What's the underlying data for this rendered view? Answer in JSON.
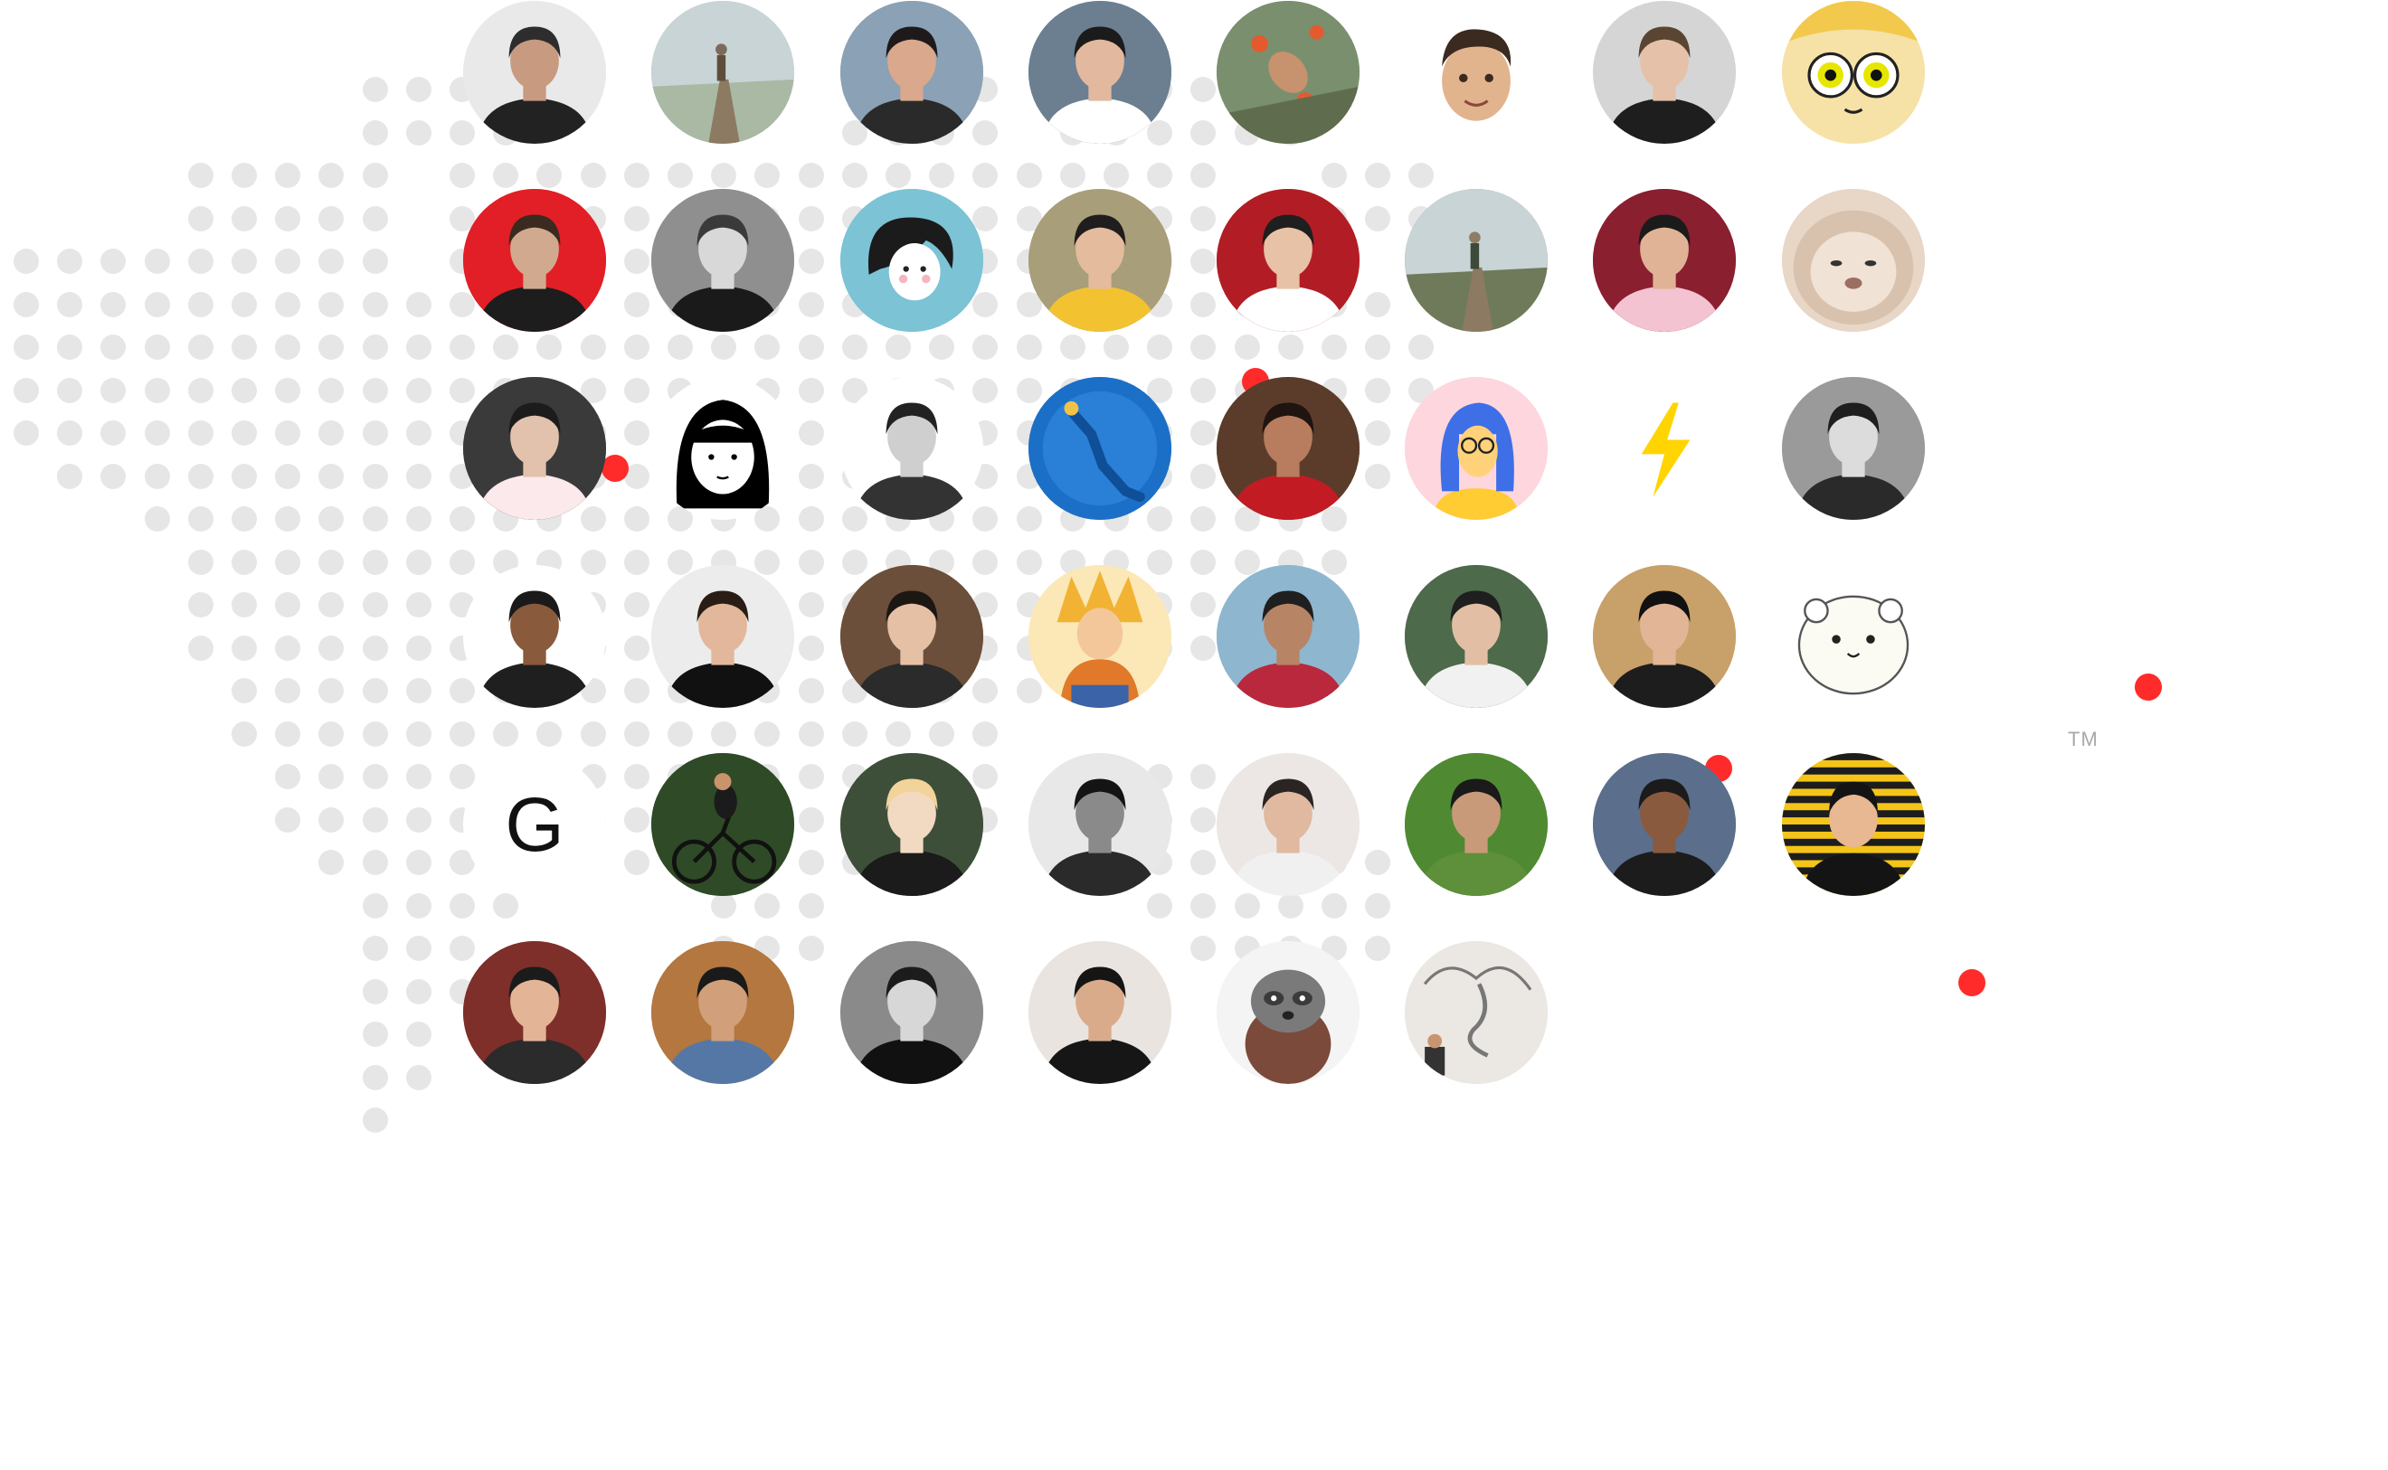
{
  "page": {
    "background": "#ffffff",
    "trademark": "TM"
  },
  "colors": {
    "dot": "#e6e6e6",
    "marker": "#ff2b2b"
  },
  "avatars": [
    {
      "kind": "person",
      "bg": "#e9e9e9",
      "skin": "#c89a80",
      "hair": "#2d2d2d",
      "shirt": "#222222",
      "icon": "avatar-photo-icon"
    },
    {
      "kind": "landscape",
      "bg": "#a9b9a4",
      "skin": "#7b6a5a",
      "hair": "#3c3329",
      "shirt": "#5f4d3c",
      "icon": "avatar-photo-icon"
    },
    {
      "kind": "person",
      "bg": "#8ba1b5",
      "skin": "#d9a88d",
      "hair": "#1f1a1a",
      "shirt": "#2a2a2a",
      "icon": "avatar-photo-icon"
    },
    {
      "kind": "person",
      "bg": "#6b7f91",
      "skin": "#e2b89f",
      "hair": "#1c1b1b",
      "shirt": "#ffffff",
      "icon": "avatar-photo-icon"
    },
    {
      "kind": "flower",
      "bg": "#7a8f6e",
      "skin": "#c7926e",
      "hair": "#2a2320",
      "shirt": "#d05a3a",
      "icon": "avatar-photo-icon"
    },
    {
      "kind": "memoji",
      "bg": "#ffffff",
      "skin": "#e2b48e",
      "hair": "#3a2a20",
      "shirt": "#ffffff",
      "icon": "memoji-icon"
    },
    {
      "kind": "person",
      "bg": "#d5d5d5",
      "skin": "#e5c1a9",
      "hair": "#5a4532",
      "shirt": "#1e1e1e",
      "icon": "avatar-photo-icon"
    },
    {
      "kind": "cartoon-eyes",
      "bg": "#f6e1a7",
      "skin": "#fff6dd",
      "hair": "#f2c94c",
      "shirt": "#ffffff",
      "icon": "cartoon-face-icon"
    },
    {
      "kind": "person",
      "bg": "#e21f26",
      "skin": "#d1a98f",
      "hair": "#3b2a1f",
      "shirt": "#1d1d1d",
      "icon": "avatar-photo-icon"
    },
    {
      "kind": "person",
      "bg": "#8f8f8f",
      "skin": "#d8d8d8",
      "hair": "#3a3a3a",
      "shirt": "#1a1a1a",
      "icon": "avatar-photo-icon"
    },
    {
      "kind": "illustration",
      "bg": "#7bc3d5",
      "skin": "#ffffff",
      "hair": "#1b1b1b",
      "shirt": "#7bc3d5",
      "icon": "illustrated-face-icon"
    },
    {
      "kind": "person",
      "bg": "#a99e7a",
      "skin": "#e4bb9d",
      "hair": "#1f1d1d",
      "shirt": "#f2c230",
      "icon": "avatar-photo-icon"
    },
    {
      "kind": "person",
      "bg": "#b21d25",
      "skin": "#e8c2a6",
      "hair": "#1f1f1f",
      "shirt": "#ffffff",
      "icon": "avatar-photo-icon"
    },
    {
      "kind": "landscape",
      "bg": "#6f7a5a",
      "skin": "#8e7d66",
      "hair": "#4a4a3a",
      "shirt": "#3c4a3a",
      "icon": "avatar-photo-icon"
    },
    {
      "kind": "person",
      "bg": "#8a1f30",
      "skin": "#e0b396",
      "hair": "#1b1b1b",
      "shirt": "#f4c3d1",
      "icon": "avatar-photo-icon"
    },
    {
      "kind": "dog",
      "bg": "#e8d6c6",
      "skin": "#f0e2d4",
      "hair": "#d9c2ad",
      "shirt": "#e8d6c6",
      "icon": "dog-icon"
    },
    {
      "kind": "person",
      "bg": "#3a3a3a",
      "skin": "#e2c1ad",
      "hair": "#1c1c1c",
      "shirt": "#fbe9ec",
      "icon": "avatar-photo-icon"
    },
    {
      "kind": "illustration-girl",
      "bg": "#ffffff",
      "skin": "#ffffff",
      "hair": "#000000",
      "shirt": "#ffffff",
      "icon": "illustrated-girl-icon"
    },
    {
      "kind": "person",
      "bg": "#ffffff",
      "skin": "#cfcfcf",
      "hair": "#222222",
      "shirt": "#333333",
      "icon": "avatar-photo-icon"
    },
    {
      "kind": "diver",
      "bg": "#1c6fc6",
      "skin": "#f0c24a",
      "hair": "#1c6fc6",
      "shirt": "#0f4f98",
      "icon": "diver-icon"
    },
    {
      "kind": "person",
      "bg": "#5b3c2b",
      "skin": "#b87d5e",
      "hair": "#1f1410",
      "shirt": "#c21b24",
      "icon": "avatar-photo-icon"
    },
    {
      "kind": "illustration-blue",
      "bg": "#fdd6de",
      "skin": "#ffd27a",
      "hair": "#3f6fe6",
      "shirt": "#ffcc33",
      "icon": "illustrated-avatar-icon"
    },
    {
      "kind": "bolt",
      "bg": "#ffffff",
      "skin": "#ffd400",
      "hair": "#ffd400",
      "shirt": "#ffffff",
      "icon": "lightning-bolt-icon"
    },
    {
      "kind": "person",
      "bg": "#9a9a9a",
      "skin": "#dcdcdc",
      "hair": "#1e1e1e",
      "shirt": "#2a2a2a",
      "icon": "avatar-photo-icon"
    },
    {
      "kind": "person",
      "bg": "#ffffff",
      "skin": "#8a5a3d",
      "hair": "#1a1a1a",
      "shirt": "#1f1f1f",
      "icon": "avatar-photo-icon"
    },
    {
      "kind": "person",
      "bg": "#ececec",
      "skin": "#e3b79b",
      "hair": "#2a1d16",
      "shirt": "#111111",
      "icon": "avatar-photo-icon"
    },
    {
      "kind": "person",
      "bg": "#6b4f3a",
      "skin": "#e6c0a5",
      "hair": "#1d1713",
      "shirt": "#2b2b2b",
      "icon": "avatar-photo-icon"
    },
    {
      "kind": "anime",
      "bg": "#fbe8b6",
      "skin": "#ffd466",
      "hair": "#f2b233",
      "shirt": "#3b63a8",
      "icon": "anime-character-icon"
    },
    {
      "kind": "person",
      "bg": "#8fb6cf",
      "skin": "#b88466",
      "hair": "#1f1f1f",
      "shirt": "#b9283c",
      "icon": "avatar-photo-icon"
    },
    {
      "kind": "person",
      "bg": "#4d6a4a",
      "skin": "#e2bfa4",
      "hair": "#1f1f1f",
      "shirt": "#f1f1f1",
      "icon": "avatar-photo-icon"
    },
    {
      "kind": "person",
      "bg": "#c8a06a",
      "skin": "#e1b596",
      "hair": "#111111",
      "shirt": "#1d1d1d",
      "icon": "avatar-photo-icon"
    },
    {
      "kind": "cartoon-sheep",
      "bg": "#ffffff",
      "skin": "#fbfaf3",
      "hair": "#ffffff",
      "shirt": "#ffffff",
      "icon": "cartoon-sheep-icon"
    },
    {
      "kind": "letter",
      "bg": "#ffffff",
      "skin": "#ffffff",
      "hair": "#111111",
      "shirt": "#ffffff",
      "icon": "letter-g-icon",
      "letter": "G"
    },
    {
      "kind": "cyclist",
      "bg": "#2f4a26",
      "skin": "#c9936c",
      "hair": "#2f2f2f",
      "shirt": "#1b1b1b",
      "icon": "cyclist-icon"
    },
    {
      "kind": "person",
      "bg": "#3e4f39",
      "skin": "#f2dac2",
      "hair": "#f2d49b",
      "shirt": "#1b1b1b",
      "icon": "avatar-photo-icon"
    },
    {
      "kind": "person",
      "bg": "#e8e8e8",
      "skin": "#8a8a8a",
      "hair": "#141414",
      "shirt": "#2a2a2a",
      "icon": "avatar-photo-icon"
    },
    {
      "kind": "person",
      "bg": "#ece7e4",
      "skin": "#e0b9a0",
      "hair": "#2a2522",
      "shirt": "#f0f0f0",
      "icon": "avatar-photo-icon"
    },
    {
      "kind": "person",
      "bg": "#4f8a32",
      "skin": "#c89a7a",
      "hair": "#1a1a1a",
      "shirt": "#5e8f3b",
      "icon": "avatar-photo-icon"
    },
    {
      "kind": "person",
      "bg": "#5b6f8c",
      "skin": "#8a5a3f",
      "hair": "#1b1b1b",
      "shirt": "#1c1c1c",
      "icon": "avatar-photo-icon"
    },
    {
      "kind": "stripes",
      "bg": "#f5c419",
      "skin": "#e7b892",
      "hair": "#141414",
      "shirt": "#141414",
      "icon": "avatar-photo-icon"
    },
    {
      "kind": "person",
      "bg": "#7e2f2a",
      "skin": "#e3b596",
      "hair": "#1b1b1b",
      "shirt": "#2b2b2b",
      "icon": "avatar-photo-icon"
    },
    {
      "kind": "person",
      "bg": "#b3773f",
      "skin": "#d1a07a",
      "hair": "#1a1a1a",
      "shirt": "#5577a6",
      "icon": "avatar-photo-icon"
    },
    {
      "kind": "person",
      "bg": "#8a8a8a",
      "skin": "#d7d7d7",
      "hair": "#1c1c1c",
      "shirt": "#111111",
      "icon": "avatar-photo-icon"
    },
    {
      "kind": "person",
      "bg": "#e9e4df",
      "skin": "#d9ab8a",
      "hair": "#151515",
      "shirt": "#161616",
      "icon": "avatar-photo-icon"
    },
    {
      "kind": "cartoon-raccoon",
      "bg": "#f4f4f4",
      "skin": "#7a7a7a",
      "hair": "#3b3b3b",
      "shirt": "#7b4a3a",
      "icon": "raccoon-illustration-icon"
    },
    {
      "kind": "mural",
      "bg": "#ebe7e2",
      "skin": "#c8956f",
      "hair": "#333333",
      "shirt": "#6b6b6b",
      "icon": "avatar-photo-icon"
    }
  ]
}
